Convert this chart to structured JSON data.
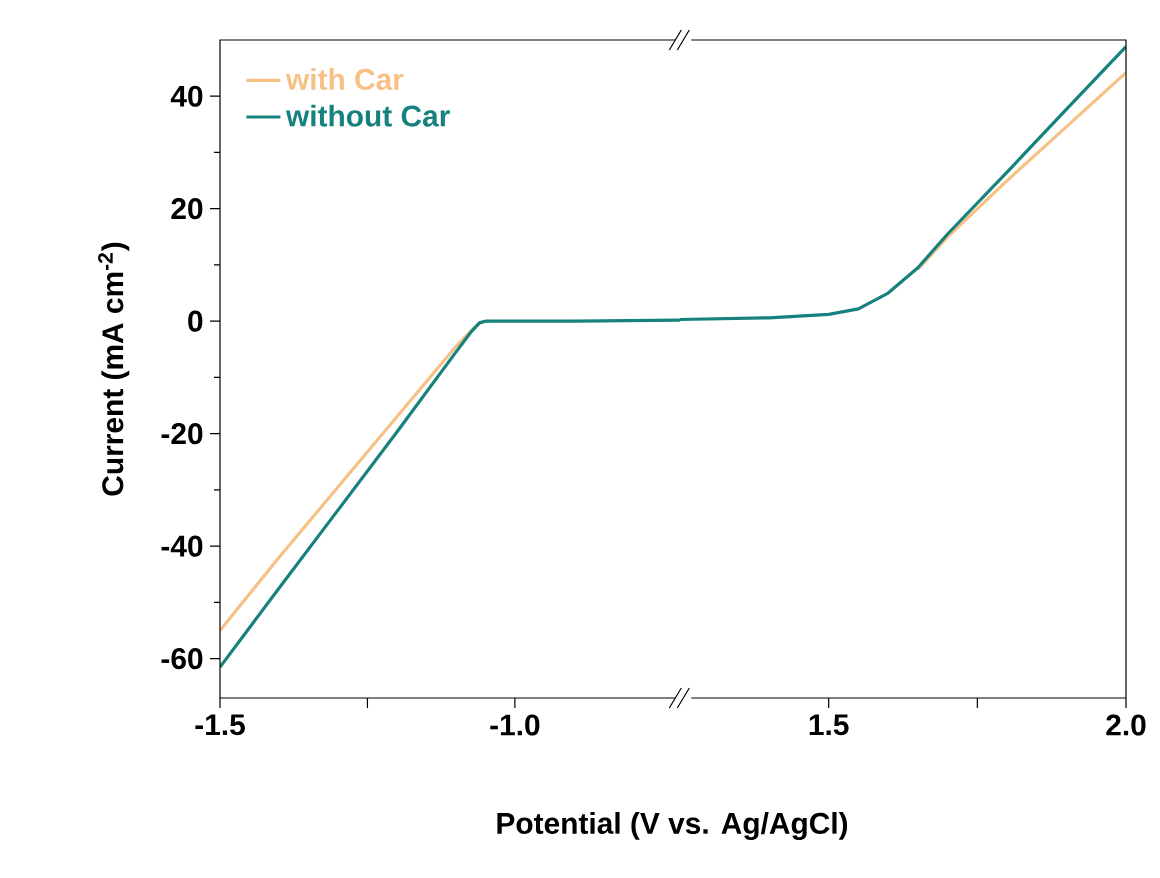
{
  "chart_data": [
    {
      "type": "line",
      "ylabel": "Current (mA cm$^{-2}$)",
      "xlabel": "Potential (V vs. Ag/AgCl)",
      "xlim": [
        -1.5,
        -0.72
      ],
      "xticks": [
        {
          "value": -1.5,
          "label": "-1.5"
        },
        {
          "value": -1.25,
          "label": null
        },
        {
          "value": -1.0,
          "label": "-1.0"
        }
      ],
      "ylim": [
        -67,
        50
      ],
      "yticks": [
        {
          "value": -60,
          "label": "-60"
        },
        {
          "value": -40,
          "label": "-40"
        },
        {
          "value": -20,
          "label": "-20"
        },
        {
          "value": 0,
          "label": "0"
        },
        {
          "value": 20,
          "label": "20"
        },
        {
          "value": 40,
          "label": "40"
        }
      ],
      "legend": "top left",
      "marker": "none",
      "line_style": "solid",
      "series": [
        {
          "name": "with Car",
          "color": "#f7c185",
          "x": [
            -1.5,
            -1.4,
            -1.3,
            -1.2,
            -1.1,
            -1.075,
            -1.06,
            -1.05
          ],
          "values": [
            -55,
            -42,
            -29.5,
            -17,
            -4.5,
            -1.8,
            -0.3,
            0
          ]
        },
        {
          "name": "without Car",
          "color": "#17827d",
          "x": [
            -1.5,
            -1.4,
            -1.3,
            -1.2,
            -1.1,
            -1.075,
            -1.06,
            -1.05,
            -0.9,
            -0.72
          ],
          "values": [
            -61.5,
            -47.5,
            -33.6,
            -19.7,
            -5.5,
            -2,
            -0.3,
            0,
            0,
            0.2
          ]
        }
      ]
    },
    {
      "type": "line",
      "xlim": [
        1.25,
        2.0
      ],
      "xticks": [
        {
          "value": 1.5,
          "label": "1.5"
        },
        {
          "value": 1.75,
          "label": null
        },
        {
          "value": 2.0,
          "label": "2.0"
        }
      ],
      "ylim": [
        -67,
        50
      ],
      "tick_labels": "x",
      "marker": "none",
      "line_style": "solid",
      "series": [
        {
          "color": "#f7c185",
          "x": [
            1.65,
            1.7,
            1.8,
            1.9,
            2.0
          ],
          "values": [
            9.2,
            15,
            25,
            34.6,
            44.2
          ]
        },
        {
          "color": "#17827d",
          "x": [
            1.25,
            1.4,
            1.5,
            1.55,
            1.6,
            1.65,
            1.7,
            1.8,
            1.9,
            2.0
          ],
          "values": [
            0.3,
            0.6,
            1.2,
            2.2,
            5,
            9.5,
            15.5,
            26.5,
            37.7,
            48.8
          ]
        }
      ]
    }
  ]
}
